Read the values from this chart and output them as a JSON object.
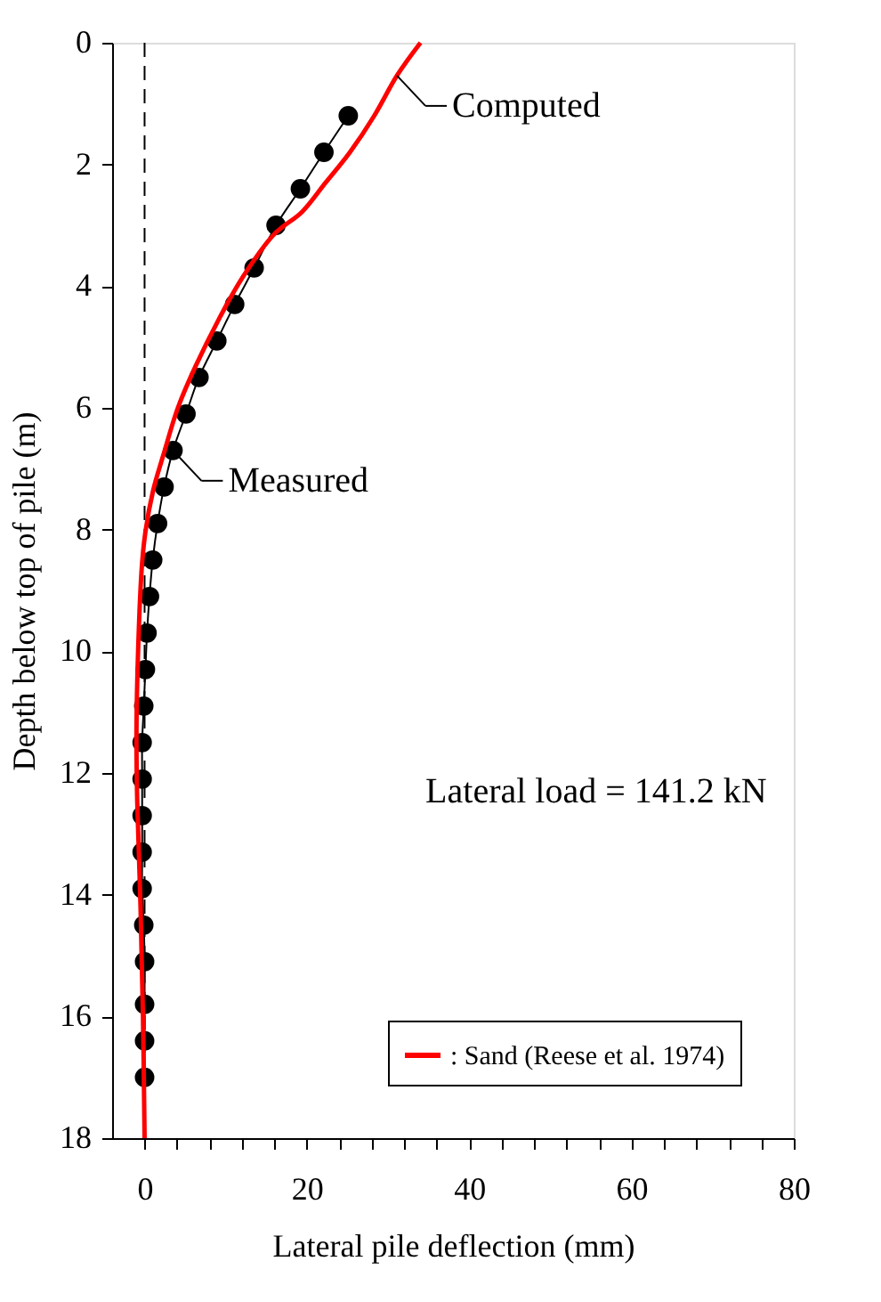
{
  "chart_data": {
    "type": "line",
    "xlabel": "Lateral pile deflection (mm)",
    "ylabel": "Depth below top of pile (m)",
    "xlim": [
      -4,
      80
    ],
    "xticks": [
      0,
      {
        "value": 4,
        "label": null
      },
      {
        "value": 8,
        "label": null
      },
      {
        "value": 12,
        "label": null
      },
      {
        "value": 16,
        "label": null
      },
      20,
      {
        "value": 24,
        "label": null
      },
      {
        "value": 28,
        "label": null
      },
      {
        "value": 32,
        "label": null
      },
      {
        "value": 36,
        "label": null
      },
      40,
      {
        "value": 44,
        "label": null
      },
      {
        "value": 48,
        "label": null
      },
      {
        "value": 52,
        "label": null
      },
      {
        "value": 56,
        "label": null
      },
      60,
      {
        "value": 64,
        "label": null
      },
      {
        "value": 68,
        "label": null
      },
      {
        "value": 72,
        "label": null
      },
      {
        "value": 76,
        "label": null
      },
      80
    ],
    "ylim": [
      18,
      0
    ],
    "yticks": [
      0,
      2,
      4,
      6,
      8,
      10,
      12,
      14,
      16,
      18
    ],
    "grid": false,
    "legend": "bottom right",
    "series": [
      {
        "marker": "circle",
        "line_style": "solid",
        "color": "#000000",
        "x": [
          25.1,
          22.1,
          19.2,
          16.2,
          13.5,
          11.1,
          8.9,
          6.7,
          5.1,
          3.5,
          2.4,
          1.6,
          1.0,
          0.6,
          0.3,
          0.1,
          -0.1,
          -0.3,
          -0.3,
          -0.3,
          -0.3,
          -0.3,
          -0.1,
          0,
          0,
          0,
          0
        ],
        "values": [
          1.2,
          1.8,
          2.4,
          3.0,
          3.7,
          4.3,
          4.9,
          5.5,
          6.1,
          6.7,
          7.3,
          7.9,
          8.5,
          9.1,
          9.7,
          10.3,
          10.9,
          11.5,
          12.1,
          12.7,
          13.3,
          13.9,
          14.5,
          15.1,
          15.8,
          16.4,
          17.0
        ]
      },
      {
        "marker": "none",
        "line_style": "solid",
        "name": ": Sand (Reese et al. 1974)",
        "color": "#ff0000",
        "x": [
          34.0,
          31.1,
          28.3,
          25.3,
          22.3,
          19.4,
          15.8,
          12.1,
          9.2,
          6.3,
          4.1,
          2.3,
          1.05,
          0.1,
          -0.4,
          -0.8,
          -1.0,
          -0.9,
          -0.5,
          -0.2,
          0
        ],
        "values": [
          0,
          0.54,
          1.2,
          1.8,
          2.3,
          2.78,
          3.17,
          3.85,
          4.53,
          5.31,
          6.0,
          6.78,
          7.36,
          8.04,
          8.73,
          10,
          11.3,
          12.5,
          14.2,
          16,
          18
        ]
      }
    ],
    "ref_lines": [
      {
        "axis": "x",
        "value": 0,
        "line_style": "dashed",
        "color": "#000000"
      }
    ],
    "annotations": [
      {
        "text": "Computed",
        "x": 31.1,
        "y": 0.54
      },
      {
        "text": "Measured",
        "x": 3.5,
        "y": 6.7
      },
      "Lateral load = 141.2 kN"
    ]
  }
}
